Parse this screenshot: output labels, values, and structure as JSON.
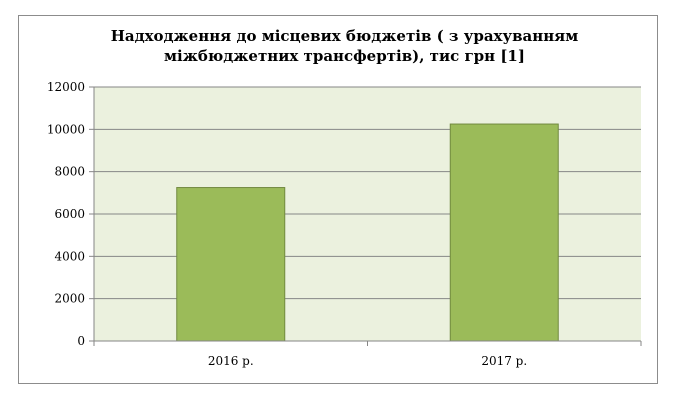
{
  "chart_data": {
    "type": "bar",
    "title_lines": [
      "Надходження до місцевих бюджетів ( з урахуванням",
      "міжбюджетних трансфертів), тис грн [1]"
    ],
    "categories": [
      "2016 р.",
      "2017 р."
    ],
    "values": [
      7250,
      10250
    ],
    "ylim": [
      0,
      12000
    ],
    "yticks": [
      0,
      2000,
      4000,
      6000,
      8000,
      10000,
      12000
    ],
    "ytick_labels": [
      "0",
      "2000",
      "4000",
      "6000",
      "8000",
      "10000",
      "12000"
    ],
    "grid": true,
    "legend": "none",
    "colors": {
      "bar_fill": "#9bbb59",
      "bar_stroke": "#71893f",
      "plot_background": "#ebf1de",
      "gridline": "#868686"
    }
  }
}
